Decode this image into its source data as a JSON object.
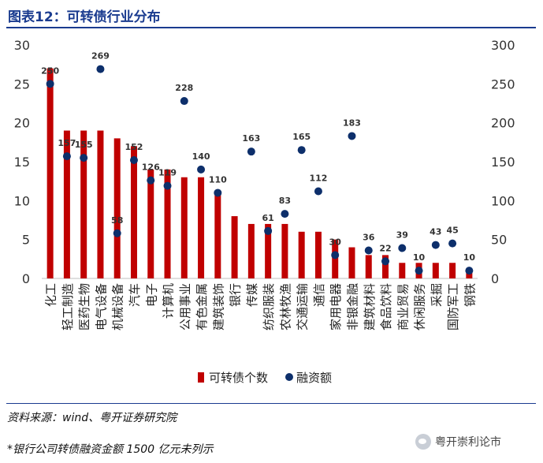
{
  "header": {
    "title": "图表12：可转债行业分布"
  },
  "chart_data": {
    "type": "bar",
    "categories": [
      "化工",
      "轻工制造",
      "医药生物",
      "电气设备",
      "机械设备",
      "汽车",
      "电子",
      "计算机",
      "公用事业",
      "有色金属",
      "建筑装饰",
      "银行",
      "传媒",
      "纺织服装",
      "农林牧渔",
      "交通运输",
      "通信",
      "家用电器",
      "非银金融",
      "建筑材料",
      "食品饮料",
      "商业贸易",
      "休闲服务",
      "采掘",
      "国防军工",
      "钢铁"
    ],
    "series": [
      {
        "name": "可转债个数",
        "axis": "left",
        "type": "bar",
        "color": "#c00000",
        "values": [
          27,
          19,
          19,
          19,
          18,
          17,
          14,
          14,
          13,
          13,
          11,
          8,
          7,
          7,
          7,
          6,
          6,
          5,
          4,
          3,
          3,
          2,
          2,
          2,
          2,
          1
        ]
      },
      {
        "name": "融资额",
        "axis": "right",
        "type": "scatter",
        "color": "#0d2f6b",
        "values": [
          250,
          157,
          155,
          269,
          58,
          152,
          126,
          119,
          228,
          140,
          110,
          null,
          163,
          61,
          83,
          165,
          112,
          30,
          183,
          36,
          22,
          39,
          10,
          43,
          45,
          10
        ]
      }
    ],
    "data_labels": [
      "250",
      "157",
      "155",
      "269",
      "58",
      "152",
      "126",
      "119",
      "228",
      "140",
      "110",
      "",
      "163",
      "61",
      "83",
      "165",
      "112",
      "30",
      "183",
      "36",
      "22",
      "39",
      "10",
      "43",
      "45",
      "10"
    ],
    "y_left": {
      "min": 0,
      "max": 30,
      "ticks": [
        "0",
        "5",
        "10",
        "15",
        "20",
        "25",
        "30"
      ]
    },
    "y_right": {
      "min": 0,
      "max": 300,
      "ticks": [
        "0",
        "50",
        "100",
        "150",
        "200",
        "250",
        "300"
      ]
    },
    "legend": [
      {
        "label": "可转债个数",
        "marker": "bar"
      },
      {
        "label": "融资额",
        "marker": "dot"
      }
    ],
    "legend_position": "bottom"
  },
  "footer": {
    "source": "资料来源：wind、粤开证券研究院",
    "note": "*银行公司转债融资金额 1500 亿元未列示",
    "watermark": "粤开崇利论市"
  }
}
